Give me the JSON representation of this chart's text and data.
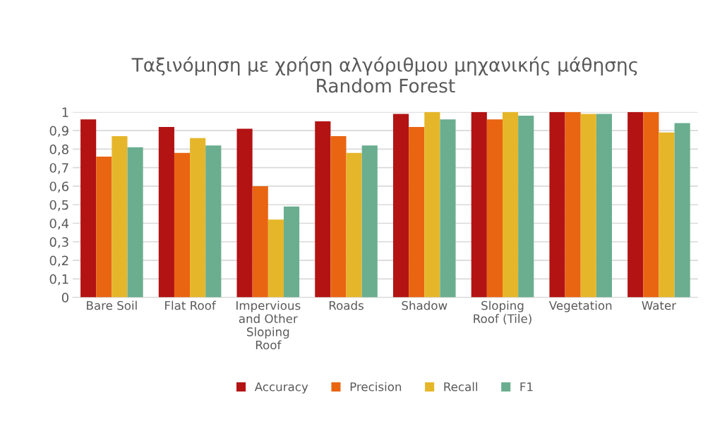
{
  "chart_data": {
    "type": "bar",
    "title": "Ταξινόμηση με χρήση αλγόριθμου μηχανικής μάθησης\nRandom Forest",
    "categories": [
      "Bare Soil",
      "Flat Roof",
      "Impervious\nand Other\nSloping\nRoof",
      "Roads",
      "Shadow",
      "Sloping\nRoof (Tile)",
      "Vegetation",
      "Water"
    ],
    "series": [
      {
        "name": "Accuracy",
        "color": "#b31313",
        "values": [
          0.96,
          0.92,
          0.91,
          0.95,
          0.99,
          1.0,
          1.0,
          1.0
        ]
      },
      {
        "name": "Precision",
        "color": "#e96512",
        "values": [
          0.76,
          0.78,
          0.6,
          0.87,
          0.92,
          0.96,
          1.0,
          1.0
        ]
      },
      {
        "name": "Recall",
        "color": "#e6b62a",
        "values": [
          0.87,
          0.86,
          0.42,
          0.78,
          1.0,
          1.0,
          0.99,
          0.89
        ]
      },
      {
        "name": "F1",
        "color": "#6aae8f",
        "values": [
          0.81,
          0.82,
          0.49,
          0.82,
          0.96,
          0.98,
          0.99,
          0.94
        ]
      }
    ],
    "ylim": [
      0,
      1
    ],
    "yticks": [
      {
        "value": 0,
        "label": "0"
      },
      {
        "value": 0.1,
        "label": "0,1"
      },
      {
        "value": 0.2,
        "label": "0,2"
      },
      {
        "value": 0.3,
        "label": "0,3"
      },
      {
        "value": 0.4,
        "label": "0,4"
      },
      {
        "value": 0.5,
        "label": "0,5"
      },
      {
        "value": 0.6,
        "label": "0,6"
      },
      {
        "value": 0.7,
        "label": "0,7"
      },
      {
        "value": 0.8,
        "label": "0,8"
      },
      {
        "value": 0.9,
        "label": "0,9"
      },
      {
        "value": 1,
        "label": "1"
      }
    ],
    "grid": "y",
    "legend": "bottom"
  }
}
